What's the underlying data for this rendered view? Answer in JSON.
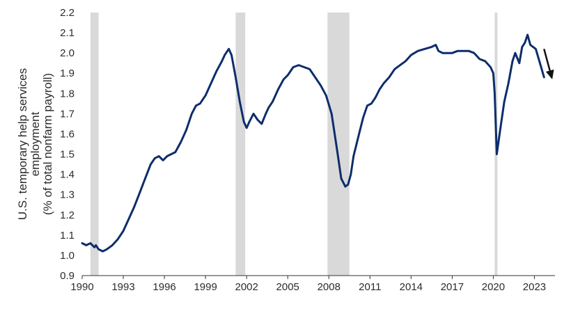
{
  "chart_data": {
    "type": "line",
    "ylabel_lines": [
      "U.S. temporary help services",
      "employment",
      "(% of total nonfarm payroll)"
    ],
    "xlim": [
      1990,
      2024.5
    ],
    "ylim": [
      0.9,
      2.2
    ],
    "x_ticks": [
      1990,
      1993,
      1996,
      1999,
      2002,
      2005,
      2008,
      2011,
      2014,
      2017,
      2020,
      2023
    ],
    "x_tick_labels": [
      "1990",
      "1993",
      "1996",
      "1999",
      "2002",
      "2005",
      "2008",
      "2011",
      "2014",
      "2017",
      "2020",
      "2023"
    ],
    "y_ticks": [
      0.9,
      1.0,
      1.1,
      1.2,
      1.3,
      1.4,
      1.5,
      1.6,
      1.7,
      1.8,
      1.9,
      2.0,
      2.1,
      2.2
    ],
    "y_tick_labels": [
      "0.9",
      "1.0",
      "1.1",
      "1.2",
      "1.3",
      "1.4",
      "1.5",
      "1.6",
      "1.7",
      "1.8",
      "1.9",
      "2.0",
      "2.1",
      "2.2"
    ],
    "grid": false,
    "line_color": "#0d2d6b",
    "recession_color": "#d9d9d9",
    "arrow_color": "#111111",
    "recessions": [
      [
        1990.6,
        1991.2
      ],
      [
        2001.2,
        2001.9
      ],
      [
        2007.9,
        2009.5
      ],
      [
        2020.1,
        2020.3
      ]
    ],
    "arrow": {
      "from": [
        2023.7,
        2.02
      ],
      "to": [
        2024.3,
        1.87
      ]
    },
    "series": [
      {
        "x": [
          1990.0,
          1990.3,
          1990.6,
          1990.9,
          1991.0,
          1991.2,
          1991.5,
          1991.8,
          1992.2,
          1992.6,
          1993.0,
          1993.4,
          1993.8,
          1994.2,
          1994.6,
          1995.0,
          1995.3,
          1995.6,
          1995.9,
          1996.2,
          1996.5,
          1996.8,
          1997.2,
          1997.6,
          1998.0,
          1998.3,
          1998.6,
          1999.0,
          1999.4,
          1999.8,
          2000.2,
          2000.4,
          2000.7,
          2000.9,
          2001.2,
          2001.5,
          2001.8,
          2002.0,
          2002.2,
          2002.5,
          2002.8,
          2003.1,
          2003.4,
          2003.6,
          2003.9,
          2004.3,
          2004.7,
          2005.0,
          2005.4,
          2005.8,
          2006.2,
          2006.6,
          2007.0,
          2007.4,
          2007.8,
          2008.2,
          2008.6,
          2008.9,
          2009.2,
          2009.4,
          2009.6,
          2009.8,
          2010.2,
          2010.5,
          2010.8,
          2011.1,
          2011.4,
          2011.7,
          2012.0,
          2012.4,
          2012.8,
          2013.2,
          2013.6,
          2014.0,
          2014.5,
          2015.0,
          2015.5,
          2015.8,
          2016.0,
          2016.3,
          2016.7,
          2017.0,
          2017.4,
          2017.8,
          2018.2,
          2018.6,
          2019.0,
          2019.4,
          2019.8,
          2020.0,
          2020.1,
          2020.25,
          2020.5,
          2020.8,
          2021.1,
          2021.4,
          2021.6,
          2021.9,
          2022.1,
          2022.3,
          2022.5,
          2022.7,
          2022.9,
          2023.1,
          2023.4,
          2023.7
        ],
        "values": [
          1.06,
          1.05,
          1.06,
          1.04,
          1.05,
          1.03,
          1.02,
          1.03,
          1.05,
          1.08,
          1.12,
          1.18,
          1.24,
          1.31,
          1.38,
          1.45,
          1.48,
          1.49,
          1.47,
          1.49,
          1.5,
          1.51,
          1.56,
          1.62,
          1.7,
          1.74,
          1.75,
          1.79,
          1.85,
          1.91,
          1.96,
          1.99,
          2.02,
          1.99,
          1.88,
          1.76,
          1.66,
          1.63,
          1.66,
          1.7,
          1.67,
          1.65,
          1.7,
          1.73,
          1.76,
          1.82,
          1.87,
          1.89,
          1.93,
          1.94,
          1.93,
          1.92,
          1.88,
          1.84,
          1.79,
          1.7,
          1.52,
          1.38,
          1.34,
          1.35,
          1.4,
          1.49,
          1.6,
          1.68,
          1.74,
          1.75,
          1.78,
          1.82,
          1.85,
          1.88,
          1.92,
          1.94,
          1.96,
          1.99,
          2.01,
          2.02,
          2.03,
          2.04,
          2.01,
          2.0,
          2.0,
          2.0,
          2.01,
          2.01,
          2.01,
          2.0,
          1.97,
          1.96,
          1.93,
          1.9,
          1.8,
          1.5,
          1.62,
          1.76,
          1.85,
          1.96,
          2.0,
          1.95,
          2.03,
          2.05,
          2.09,
          2.04,
          2.03,
          2.02,
          1.95,
          1.88
        ]
      }
    ]
  }
}
